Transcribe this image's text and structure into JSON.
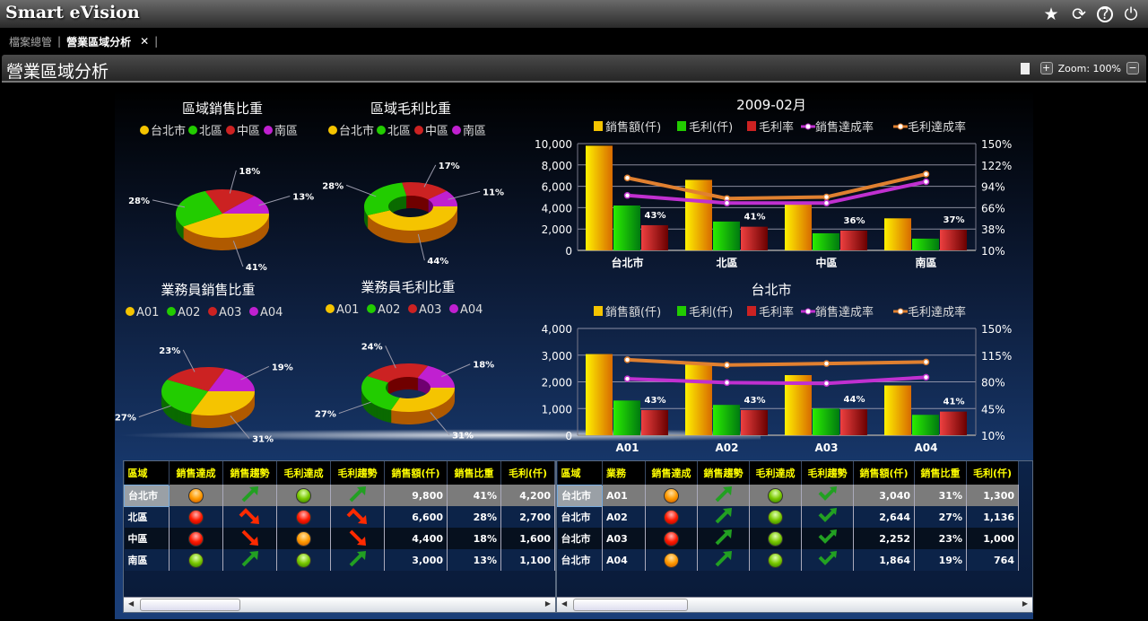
{
  "app": {
    "title": "Smart eVision",
    "icons": [
      "star-icon",
      "refresh-icon",
      "help-icon",
      "power-icon"
    ]
  },
  "tabs": [
    {
      "label": "檔案總管",
      "active": false
    },
    {
      "label": "營業區域分析",
      "active": true,
      "close": "✕"
    }
  ],
  "page": {
    "title": "營業區域分析",
    "zoom_label": "Zoom: 100%"
  },
  "colors": {
    "yellow": "#f5c400",
    "green": "#22cc00",
    "red": "#cc2222",
    "purple": "#c020d0",
    "orange_line": "#e08030",
    "purple_line": "#c030d0"
  },
  "pies": [
    {
      "title": "區域銷售比重",
      "labels": [
        "台北市",
        "北區",
        "中區",
        "南區"
      ],
      "values": [
        41,
        28,
        18,
        13
      ],
      "donut": false
    },
    {
      "title": "區域毛利比重",
      "labels": [
        "台北市",
        "北區",
        "中區",
        "南區"
      ],
      "values": [
        44,
        28,
        17,
        11
      ],
      "donut": true
    },
    {
      "title": "業務員銷售比重",
      "labels": [
        "A01",
        "A02",
        "A03",
        "A04"
      ],
      "values": [
        31,
        27,
        23,
        19
      ],
      "donut": false
    },
    {
      "title": "業務員毛利比重",
      "labels": [
        "A01",
        "A02",
        "A03",
        "A04"
      ],
      "values": [
        31,
        27,
        24,
        18
      ],
      "donut": true
    }
  ],
  "chart_data": [
    {
      "type": "bar",
      "title": "2009-02月",
      "categories": [
        "台北市",
        "北區",
        "中區",
        "南區"
      ],
      "legend": [
        "銷售額(仟)",
        "毛利(仟)",
        "毛利率",
        "銷售達成率",
        "毛利達成率"
      ],
      "ylim": [
        0,
        10000
      ],
      "yticks": [
        "0",
        "2,000",
        "4,000",
        "6,000",
        "8,000",
        "10,000"
      ],
      "y2lim": [
        10,
        150
      ],
      "y2ticks": [
        "10%",
        "38%",
        "66%",
        "94%",
        "122%",
        "150%"
      ],
      "series": [
        {
          "name": "銷售額(仟)",
          "kind": "bar",
          "axis": "left",
          "values": [
            9800,
            6600,
            4400,
            3000
          ]
        },
        {
          "name": "毛利(仟)",
          "kind": "bar",
          "axis": "left",
          "values": [
            4200,
            2700,
            1600,
            1100
          ]
        },
        {
          "name": "毛利率",
          "kind": "bar",
          "axis": "right",
          "values": [
            43,
            41,
            36,
            37
          ],
          "labels": [
            "43%",
            "41%",
            "36%",
            "37%"
          ]
        },
        {
          "name": "銷售達成率",
          "kind": "line",
          "axis": "right",
          "values": [
            82,
            72,
            72,
            100
          ]
        },
        {
          "name": "毛利達成率",
          "kind": "line",
          "axis": "right",
          "values": [
            105,
            78,
            80,
            110
          ]
        }
      ]
    },
    {
      "type": "bar",
      "title": "台北市",
      "categories": [
        "A01",
        "A02",
        "A03",
        "A04"
      ],
      "legend": [
        "銷售額(仟)",
        "毛利(仟)",
        "毛利率",
        "銷售達成率",
        "毛利達成率"
      ],
      "ylim": [
        0,
        4000
      ],
      "yticks": [
        "0",
        "1,000",
        "2,000",
        "3,000",
        "4,000"
      ],
      "y2lim": [
        10,
        150
      ],
      "y2ticks": [
        "10%",
        "45%",
        "80%",
        "115%",
        "150%"
      ],
      "series": [
        {
          "name": "銷售額(仟)",
          "kind": "bar",
          "axis": "left",
          "values": [
            3040,
            2644,
            2252,
            1864
          ]
        },
        {
          "name": "毛利(仟)",
          "kind": "bar",
          "axis": "left",
          "values": [
            1300,
            1136,
            1000,
            764
          ]
        },
        {
          "name": "毛利率",
          "kind": "bar",
          "axis": "right",
          "values": [
            43,
            43,
            44,
            41
          ],
          "labels": [
            "43%",
            "43%",
            "44%",
            "41%"
          ]
        },
        {
          "name": "銷售達成率",
          "kind": "line",
          "axis": "right",
          "values": [
            84,
            79,
            78,
            86
          ]
        },
        {
          "name": "毛利達成率",
          "kind": "line",
          "axis": "right",
          "values": [
            109,
            102,
            104,
            106
          ]
        }
      ]
    }
  ],
  "table_left": {
    "headers": [
      "區域",
      "銷售達成",
      "銷售趨勢",
      "毛利達成",
      "毛利趨勢",
      "銷售額(仟)",
      "銷售比重",
      "毛利(仟)"
    ],
    "rows": [
      [
        "台北市",
        "orange",
        "up",
        "green",
        "up",
        "9,800",
        "41%",
        "4,200"
      ],
      [
        "北區",
        "red",
        "peak-down",
        "red",
        "peak-down",
        "6,600",
        "28%",
        "2,700"
      ],
      [
        "中區",
        "red",
        "down",
        "orange",
        "down",
        "4,400",
        "18%",
        "1,600"
      ],
      [
        "南區",
        "green",
        "up",
        "green",
        "up",
        "3,000",
        "13%",
        "1,100"
      ]
    ]
  },
  "table_right": {
    "headers": [
      "區域",
      "業務",
      "銷售達成",
      "銷售趨勢",
      "毛利達成",
      "毛利趨勢",
      "銷售額(仟)",
      "銷售比重",
      "毛利(仟)"
    ],
    "rows": [
      [
        "台北市",
        "A01",
        "orange",
        "up",
        "green",
        "check-up",
        "3,040",
        "31%",
        "1,300"
      ],
      [
        "台北市",
        "A02",
        "red",
        "up",
        "green",
        "check-up",
        "2,644",
        "27%",
        "1,136"
      ],
      [
        "台北市",
        "A03",
        "red",
        "up",
        "green",
        "check-up",
        "2,252",
        "23%",
        "1,000"
      ],
      [
        "台北市",
        "A04",
        "orange",
        "up",
        "green",
        "check-up",
        "1,864",
        "19%",
        "764"
      ]
    ]
  }
}
